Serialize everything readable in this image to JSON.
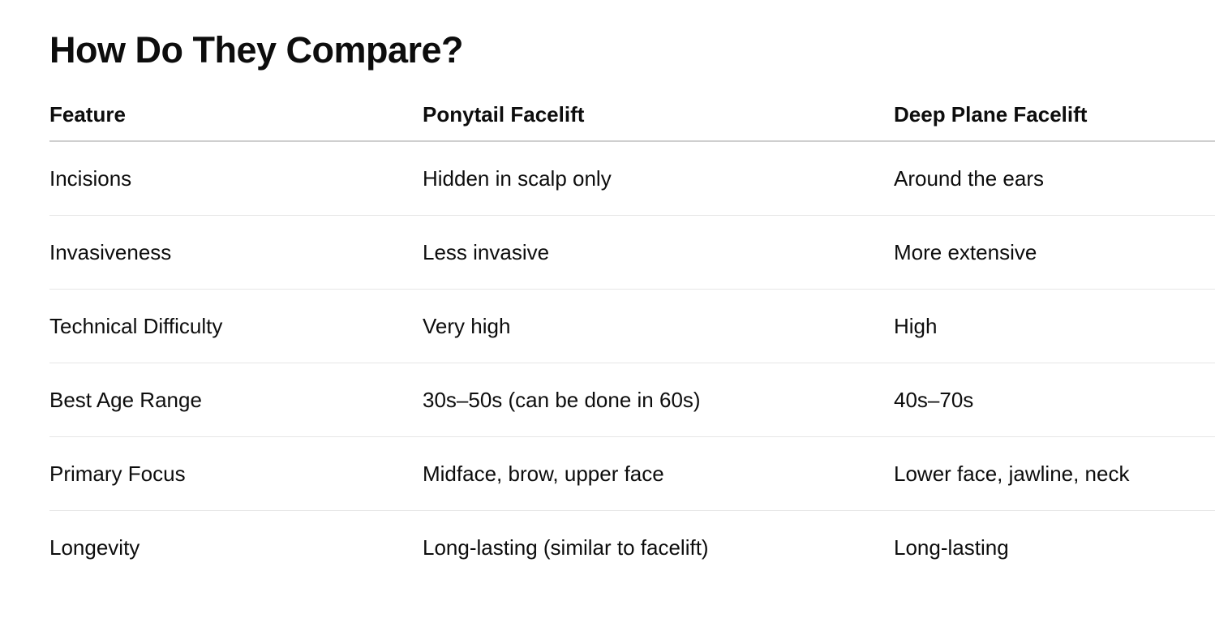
{
  "title": "How Do They Compare?",
  "table": {
    "headers": [
      "Feature",
      "Ponytail Facelift",
      "Deep Plane Facelift"
    ],
    "rows": [
      [
        "Incisions",
        "Hidden in scalp only",
        "Around the ears"
      ],
      [
        "Invasiveness",
        "Less invasive",
        "More extensive"
      ],
      [
        "Technical Difficulty",
        "Very high",
        "High"
      ],
      [
        "Best Age Range",
        "30s–50s (can be done in 60s)",
        "40s–70s"
      ],
      [
        "Primary Focus",
        "Midface, brow, upper face",
        "Lower face, jawline, neck"
      ],
      [
        "Longevity",
        "Long-lasting (similar to facelift)",
        "Long-lasting"
      ]
    ]
  }
}
